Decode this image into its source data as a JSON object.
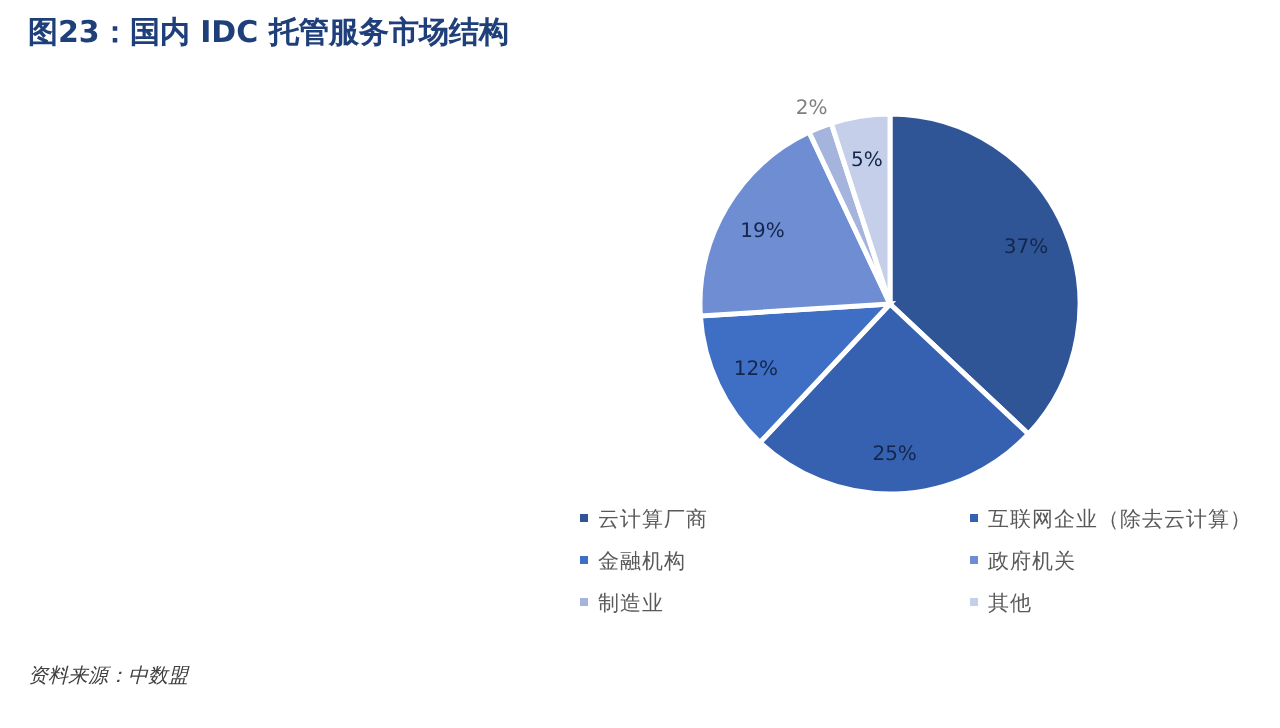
{
  "chart_data": {
    "type": "pie",
    "title": "图23：国内 IDC 托管服务市场结构",
    "categories": [
      "云计算厂商",
      "互联网企业（除去云计算）",
      "金融机构",
      "政府机关",
      "制造业",
      "其他"
    ],
    "values": [
      37,
      25,
      12,
      19,
      2,
      5
    ],
    "value_labels": [
      "37%",
      "25%",
      "12%",
      "19%",
      "2%",
      "5%"
    ],
    "colors": [
      "#2f5597",
      "#3561b0",
      "#3f6fc4",
      "#6f8dd3",
      "#a4b4dc",
      "#c5cfea"
    ],
    "legend": "bottom",
    "annotations": [
      "资料来源：中数盟"
    ]
  }
}
